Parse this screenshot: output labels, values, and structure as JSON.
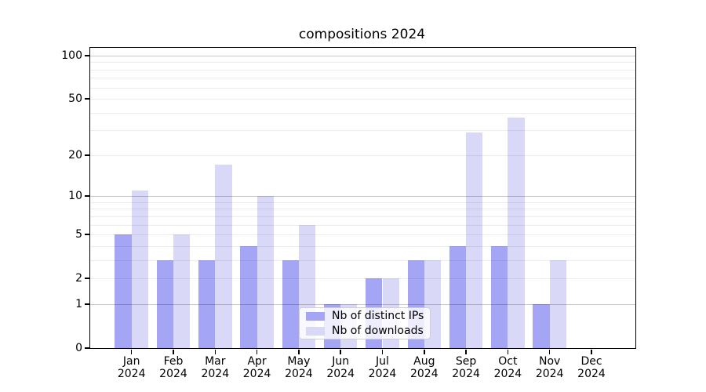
{
  "title": "compositions 2024",
  "chart_data": {
    "type": "bar",
    "title": "compositions 2024",
    "xlabel": "",
    "ylabel": "",
    "categories": [
      "Jan",
      "Feb",
      "Mar",
      "Apr",
      "May",
      "Jun",
      "Jul",
      "Aug",
      "Sep",
      "Oct",
      "Nov",
      "Dec"
    ],
    "x_second_line": "2024",
    "series": [
      {
        "name": "Nb of distinct IPs",
        "color": "#a5a5f5",
        "values": [
          5,
          3,
          3,
          4,
          3,
          1,
          2,
          3,
          4,
          4,
          1,
          0
        ]
      },
      {
        "name": "Nb of downloads",
        "color": "#d9d9f7",
        "values": [
          11,
          5,
          17,
          10,
          6,
          1,
          2,
          3,
          29,
          37,
          3,
          0
        ]
      }
    ],
    "yscale": "log1p",
    "ylim": [
      0,
      113
    ],
    "yticks": [
      0,
      1,
      2,
      5,
      10,
      20,
      50,
      100
    ],
    "gridlines": {
      "major": [
        1,
        10,
        100
      ],
      "minor": [
        2,
        3,
        4,
        5,
        6,
        7,
        8,
        9,
        20,
        30,
        40,
        50,
        60,
        70,
        80,
        90
      ]
    },
    "grid_over_bars": true,
    "legend_position": "lower center",
    "colors": {
      "background": "#ffffff",
      "axis": "#000000",
      "major_grid": "#c7c7c7",
      "minor_grid": "#ececec",
      "bar_ips": "#a5a5f5",
      "bar_downloads": "#d9d9f7"
    }
  }
}
